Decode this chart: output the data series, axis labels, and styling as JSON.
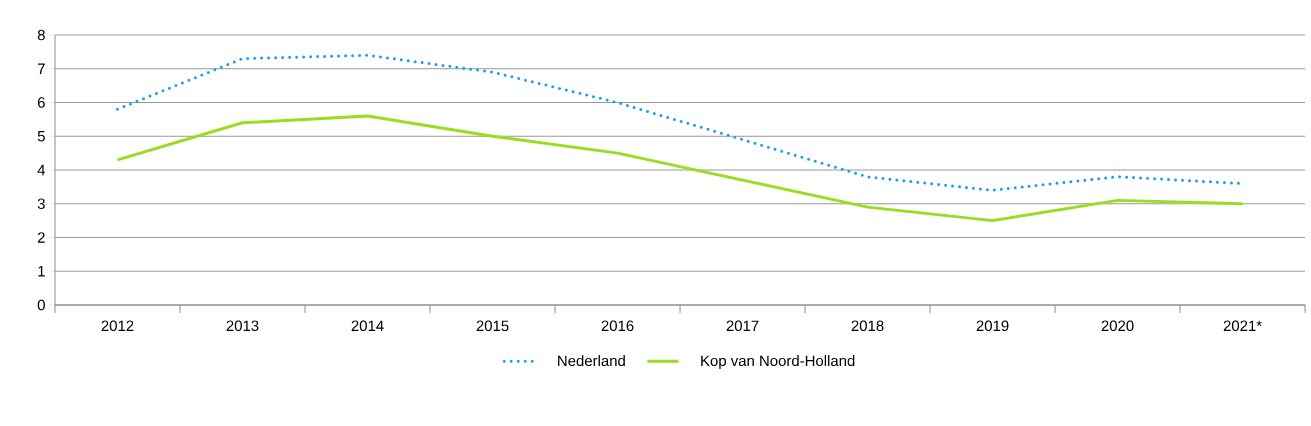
{
  "chart_data": {
    "type": "line",
    "categories": [
      "2012",
      "2013",
      "2014",
      "2015",
      "2016",
      "2017",
      "2018",
      "2019",
      "2020",
      "2021*"
    ],
    "series": [
      {
        "name": "Nederland",
        "color": "#1ba1e2",
        "line_style": "dotted",
        "values": [
          5.8,
          7.3,
          7.4,
          6.9,
          6.0,
          4.9,
          3.8,
          3.4,
          3.8,
          3.6
        ]
      },
      {
        "name": "Kop van Noord-Holland",
        "color": "#99dd22",
        "line_style": "solid",
        "values": [
          4.3,
          5.4,
          5.6,
          5.0,
          4.5,
          3.7,
          2.9,
          2.5,
          3.1,
          3.0
        ]
      }
    ],
    "ylim": [
      0,
      8
    ],
    "yticks": [
      0,
      1,
      2,
      3,
      4,
      5,
      6,
      7,
      8
    ],
    "grid": "y",
    "legend": "bottom",
    "marker": "none"
  }
}
